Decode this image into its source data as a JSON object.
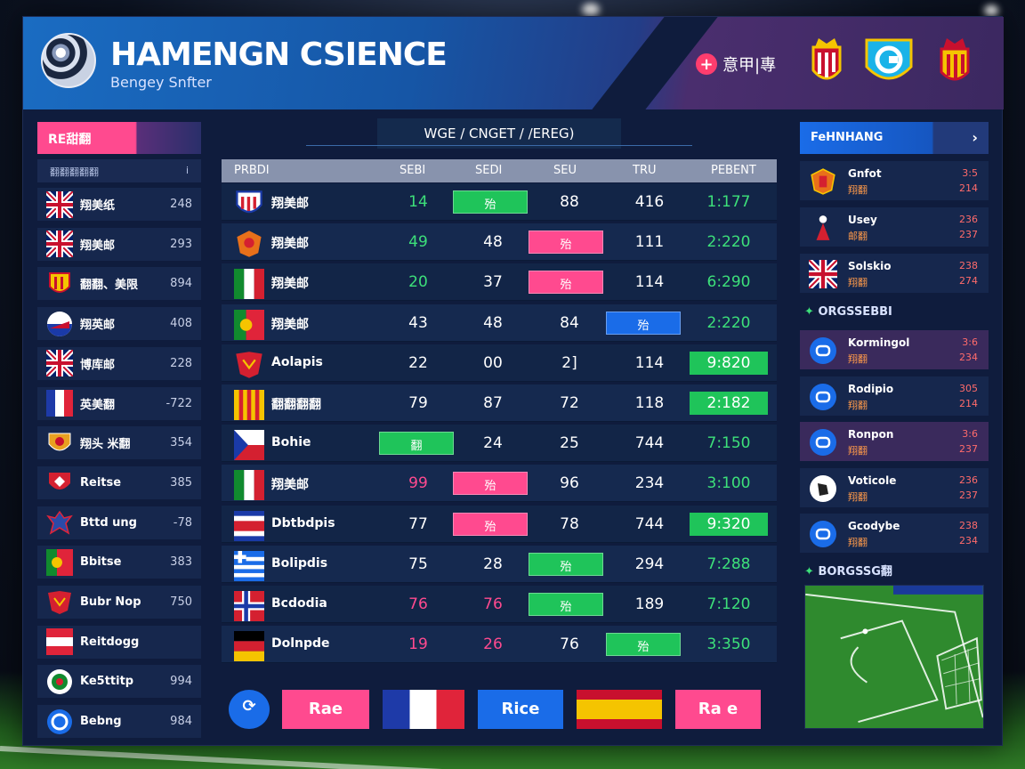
{
  "header": {
    "title": "HAMENGN CSIENCE",
    "subtitle": "Bengey Snfter",
    "right_text": "意甲|專",
    "plus_icon": "plus-icon"
  },
  "left": {
    "title": "RE甜翻",
    "sub_label": "翻翻翻翻翻",
    "sub_icon": "i",
    "items": [
      {
        "name": "翔美纸",
        "value": "248",
        "flag": "uk-flag-icon"
      },
      {
        "name": "翔美邮",
        "value": "293",
        "flag": "uk-flag-icon"
      },
      {
        "name": "翻翻、美限",
        "value": "894",
        "flag": "crest-icon"
      },
      {
        "name": "翔英邮",
        "value": "408",
        "flag": "round-flag-icon"
      },
      {
        "name": "博库邮",
        "value": "228",
        "flag": "uk-flag-icon"
      },
      {
        "name": "英美翻",
        "value": "-722",
        "flag": "france-flag-icon"
      },
      {
        "name": "翔头 米翻",
        "value": "354",
        "flag": "shield-icon"
      },
      {
        "name": "Reitse",
        "value": "385",
        "flag": "red-shield-icon"
      },
      {
        "name": "Bttd ung",
        "value": "-78",
        "flag": "eagle-icon"
      },
      {
        "name": "Bbitse",
        "value": "383",
        "flag": "portugal-flag-icon"
      },
      {
        "name": "Bubr Nop",
        "value": "750",
        "flag": "red-badge-icon"
      },
      {
        "name": "Reitdogg",
        "value": "",
        "flag": "austria-flag-icon"
      },
      {
        "name": "Ke5ttitp",
        "value": "994",
        "flag": "round-crest-icon"
      },
      {
        "name": "Bebng",
        "value": "984",
        "flag": "blue-circle-icon"
      }
    ]
  },
  "center": {
    "tab": "WGE / CNGET / /EREG)",
    "columns": [
      "PRBDI",
      "SEBI",
      "SEDI",
      "SEU",
      "TRU",
      "PEBENT"
    ],
    "rows": [
      {
        "name": "翔美邮",
        "c1": "14",
        "pill": "殆",
        "c3": "88",
        "c4": "416",
        "ratio": "1:177",
        "flag": "usa-crest-icon"
      },
      {
        "name": "翔美邮",
        "c1": "49",
        "c2": "48",
        "pill": "殆",
        "c4": "111",
        "ratio": "2:220",
        "flag": "orange-crest-icon"
      },
      {
        "name": "翔美邮",
        "c1": "20",
        "c2": "37",
        "pill": "殆",
        "c4": "114",
        "ratio": "6:290",
        "flag": "italy-flag-icon"
      },
      {
        "name": "翔美邮",
        "c1": "43",
        "c2": "48",
        "c3": "84",
        "pill": "殆",
        "ratio": "2:220",
        "flag": "portugal-flag-icon"
      },
      {
        "name": "Aolapis",
        "c1": "22",
        "c2": "00",
        "c3": "2]",
        "c4": "114",
        "ratio": "9:820",
        "flag": "red-badge-icon"
      },
      {
        "name": "翻翻翻翻",
        "c1": "79",
        "c2": "87",
        "c3": "72",
        "c4": "118",
        "ratio": "2:182",
        "flag": "catalonia-flag-icon"
      },
      {
        "name": "Bohie",
        "pill": "翻",
        "c2": "24",
        "c3": "25",
        "c4": "744",
        "ratio": "7:150",
        "flag": "czech-flag-icon"
      },
      {
        "name": "翔美邮",
        "c1": "99",
        "pill": "殆",
        "c3": "96",
        "c4": "234",
        "ratio": "3:100",
        "flag": "italy-flag-icon"
      },
      {
        "name": "Dbtbdpis",
        "c1": "77",
        "pill": "殆",
        "c3": "78",
        "c4": "744",
        "ratio": "9:320",
        "flag": "costa-rica-flag-icon"
      },
      {
        "name": "Bolipdis",
        "c1": "75",
        "c2": "28",
        "pill": "殆",
        "c4": "294",
        "ratio": "7:288",
        "flag": "greece-flag-icon"
      },
      {
        "name": "Bcdodia",
        "c1": "76",
        "c2": "76",
        "pill": "殆",
        "c4": "189",
        "ratio": "7:120",
        "flag": "norway-flag-icon"
      },
      {
        "name": "Dolnpde",
        "c1": "19",
        "c2": "26",
        "c3": "76",
        "pill": "殆",
        "ratio": "3:350",
        "flag": "germany-flag-icon"
      }
    ],
    "buttons": [
      "Rae",
      "Rice",
      "Ra e"
    ]
  },
  "right": {
    "title": "FeHNHANG",
    "section1": "ORGSSEBBI",
    "section2": "BORGSSG翻",
    "teams": [
      {
        "name": "Gnfot",
        "sub": "翔翻",
        "v1": "3:5",
        "v2": "214",
        "icon": "spain-crest-icon"
      },
      {
        "name": "Usey",
        "sub": "邮翻",
        "v1": "236",
        "v2": "237",
        "icon": "red-figure-icon"
      },
      {
        "name": "Solskio",
        "sub": "翔翻",
        "v1": "238",
        "v2": "274",
        "icon": "uk-flag-icon"
      }
    ],
    "stadiums": [
      {
        "name": "Kormingol",
        "sub": "翔翻",
        "v1": "3:6",
        "v2": "234",
        "icon": "stadium-icon"
      },
      {
        "name": "Rodipio",
        "sub": "翔翻",
        "v1": "305",
        "v2": "214",
        "icon": "stadium-icon"
      },
      {
        "name": "Ronpon",
        "sub": "翔翻",
        "v1": "3:6",
        "v2": "237",
        "icon": "stadium-icon"
      },
      {
        "name": "Voticole",
        "sub": "翔翻",
        "v1": "236",
        "v2": "237",
        "icon": "ball-icon"
      },
      {
        "name": "Gcodybe",
        "sub": "翔翻",
        "v1": "238",
        "v2": "234",
        "icon": "stadium-icon"
      }
    ]
  },
  "colors": {
    "green": "#3de07a",
    "pink": "#ff4a8f",
    "blue": "#1a6ce8",
    "panel": "#0f1c3d"
  }
}
